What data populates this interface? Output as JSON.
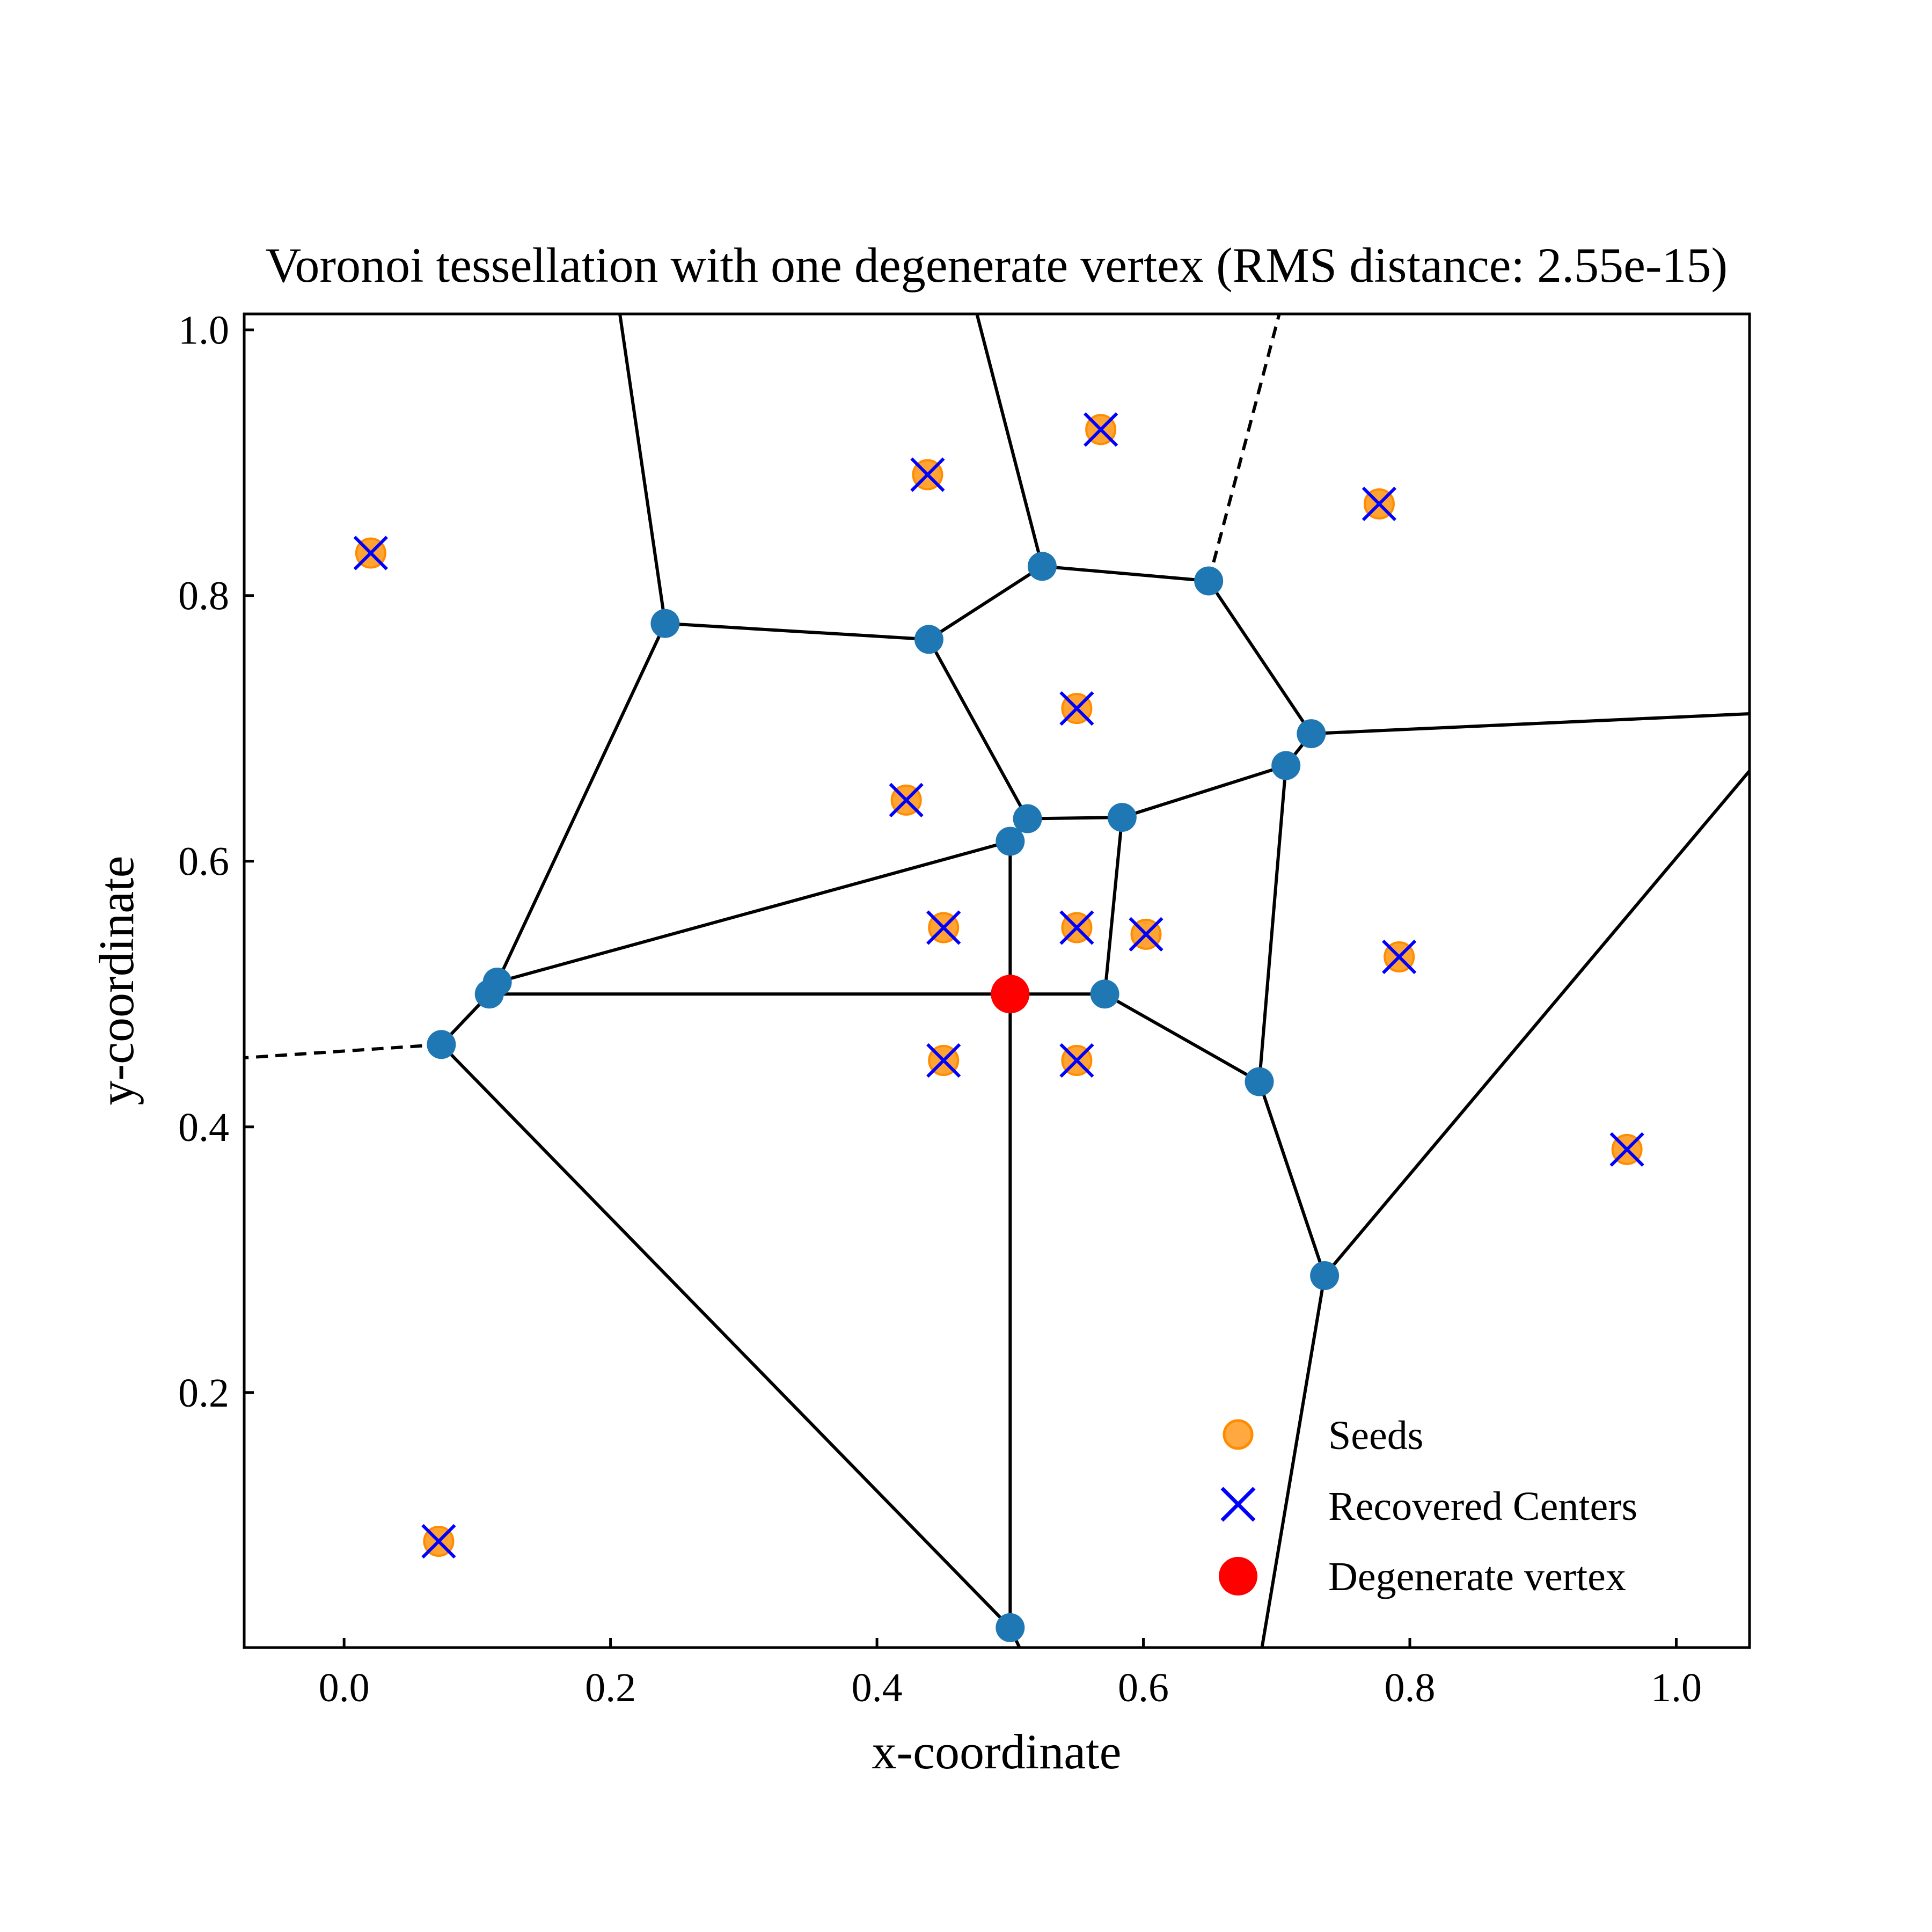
{
  "chart_data": {
    "type": "scatter",
    "title": "Voronoi tessellation with one degenerate vertex (RMS distance: 2.55e-15)",
    "xlabel": "x-coordinate",
    "ylabel": "y-coordinate",
    "xlim": [
      -0.075,
      1.055
    ],
    "ylim": [
      0.008,
      1.012
    ],
    "xticks": [
      0.0,
      0.2,
      0.4,
      0.6,
      0.8,
      1.0
    ],
    "xtick_labels": [
      "0.0",
      "0.2",
      "0.4",
      "0.6",
      "0.8",
      "1.0"
    ],
    "yticks": [
      0.2,
      0.4,
      0.6,
      0.8,
      1.0
    ],
    "ytick_labels": [
      "0.2",
      "0.4",
      "0.6",
      "0.8",
      "1.0"
    ],
    "grid": false,
    "legend_position": "lower-right",
    "colors": {
      "seed": "#ff8c00",
      "center": "#0000ff",
      "vertex": "#1f77b4",
      "degenerate": "#ff0000",
      "edge": "#000000"
    },
    "series": [
      {
        "name": "Seeds",
        "marker": "circle",
        "points": [
          [
            0.02,
            0.832
          ],
          [
            0.438,
            0.891
          ],
          [
            0.568,
            0.925
          ],
          [
            0.777,
            0.869
          ],
          [
            0.55,
            0.715
          ],
          [
            0.422,
            0.646
          ],
          [
            0.45,
            0.55
          ],
          [
            0.55,
            0.55
          ],
          [
            0.602,
            0.545
          ],
          [
            0.792,
            0.528
          ],
          [
            0.45,
            0.45
          ],
          [
            0.55,
            0.45
          ],
          [
            0.963,
            0.383
          ],
          [
            0.071,
            0.088
          ]
        ]
      },
      {
        "name": "Recovered Centers",
        "marker": "x",
        "points": [
          [
            0.02,
            0.832
          ],
          [
            0.438,
            0.891
          ],
          [
            0.568,
            0.925
          ],
          [
            0.777,
            0.869
          ],
          [
            0.55,
            0.715
          ],
          [
            0.422,
            0.646
          ],
          [
            0.45,
            0.55
          ],
          [
            0.55,
            0.55
          ],
          [
            0.602,
            0.545
          ],
          [
            0.792,
            0.528
          ],
          [
            0.45,
            0.45
          ],
          [
            0.55,
            0.45
          ],
          [
            0.963,
            0.383
          ],
          [
            0.071,
            0.088
          ]
        ]
      },
      {
        "name": "Degenerate vertex",
        "marker": "circle",
        "points": [
          [
            0.5,
            0.5
          ]
        ]
      }
    ],
    "voronoi_vertices": [
      [
        0.241,
        0.779
      ],
      [
        0.439,
        0.767
      ],
      [
        0.524,
        0.822
      ],
      [
        0.649,
        0.811
      ],
      [
        0.726,
        0.696
      ],
      [
        0.707,
        0.672
      ],
      [
        0.513,
        0.632
      ],
      [
        0.584,
        0.633
      ],
      [
        0.5,
        0.615
      ],
      [
        0.115,
        0.509
      ],
      [
        0.109,
        0.5
      ],
      [
        0.073,
        0.462
      ],
      [
        0.571,
        0.5
      ],
      [
        0.687,
        0.434
      ],
      [
        0.736,
        0.288
      ],
      [
        0.5,
        0.023
      ]
    ],
    "edges": [
      [
        [
          0.207,
          1.012
        ],
        [
          0.241,
          0.779
        ]
      ],
      [
        [
          0.475,
          1.012
        ],
        [
          0.524,
          0.822
        ]
      ],
      [
        [
          0.241,
          0.779
        ],
        [
          0.439,
          0.767
        ]
      ],
      [
        [
          0.439,
          0.767
        ],
        [
          0.524,
          0.822
        ]
      ],
      [
        [
          0.524,
          0.822
        ],
        [
          0.649,
          0.811
        ]
      ],
      [
        [
          0.649,
          0.811
        ],
        [
          0.726,
          0.696
        ]
      ],
      [
        [
          0.726,
          0.696
        ],
        [
          1.055,
          0.711
        ]
      ],
      [
        [
          0.726,
          0.696
        ],
        [
          0.707,
          0.672
        ]
      ],
      [
        [
          0.439,
          0.767
        ],
        [
          0.513,
          0.632
        ]
      ],
      [
        [
          0.513,
          0.632
        ],
        [
          0.5,
          0.615
        ]
      ],
      [
        [
          0.513,
          0.632
        ],
        [
          0.584,
          0.633
        ]
      ],
      [
        [
          0.584,
          0.633
        ],
        [
          0.707,
          0.672
        ]
      ],
      [
        [
          0.584,
          0.633
        ],
        [
          0.571,
          0.5
        ]
      ],
      [
        [
          0.707,
          0.672
        ],
        [
          0.687,
          0.434
        ]
      ],
      [
        [
          0.241,
          0.779
        ],
        [
          0.115,
          0.509
        ]
      ],
      [
        [
          0.115,
          0.509
        ],
        [
          0.5,
          0.615
        ]
      ],
      [
        [
          0.115,
          0.509
        ],
        [
          0.109,
          0.5
        ]
      ],
      [
        [
          0.109,
          0.5
        ],
        [
          0.073,
          0.462
        ]
      ],
      [
        [
          0.109,
          0.5
        ],
        [
          0.5,
          0.5
        ]
      ],
      [
        [
          0.5,
          0.5
        ],
        [
          0.571,
          0.5
        ]
      ],
      [
        [
          0.5,
          0.615
        ],
        [
          0.5,
          0.5
        ]
      ],
      [
        [
          0.5,
          0.5
        ],
        [
          0.5,
          0.023
        ]
      ],
      [
        [
          0.571,
          0.5
        ],
        [
          0.687,
          0.434
        ]
      ],
      [
        [
          0.687,
          0.434
        ],
        [
          0.736,
          0.288
        ]
      ],
      [
        [
          0.736,
          0.288
        ],
        [
          1.055,
          0.668
        ]
      ],
      [
        [
          0.736,
          0.288
        ],
        [
          0.689,
          0.008
        ]
      ],
      [
        [
          0.073,
          0.462
        ],
        [
          0.5,
          0.023
        ]
      ],
      [
        [
          0.5,
          0.023
        ],
        [
          0.507,
          0.008
        ]
      ]
    ],
    "dashed_edges": [
      [
        [
          0.649,
          0.811
        ],
        [
          0.702,
          1.012
        ]
      ],
      [
        [
          0.073,
          0.462
        ],
        [
          -0.075,
          0.452
        ]
      ]
    ]
  }
}
